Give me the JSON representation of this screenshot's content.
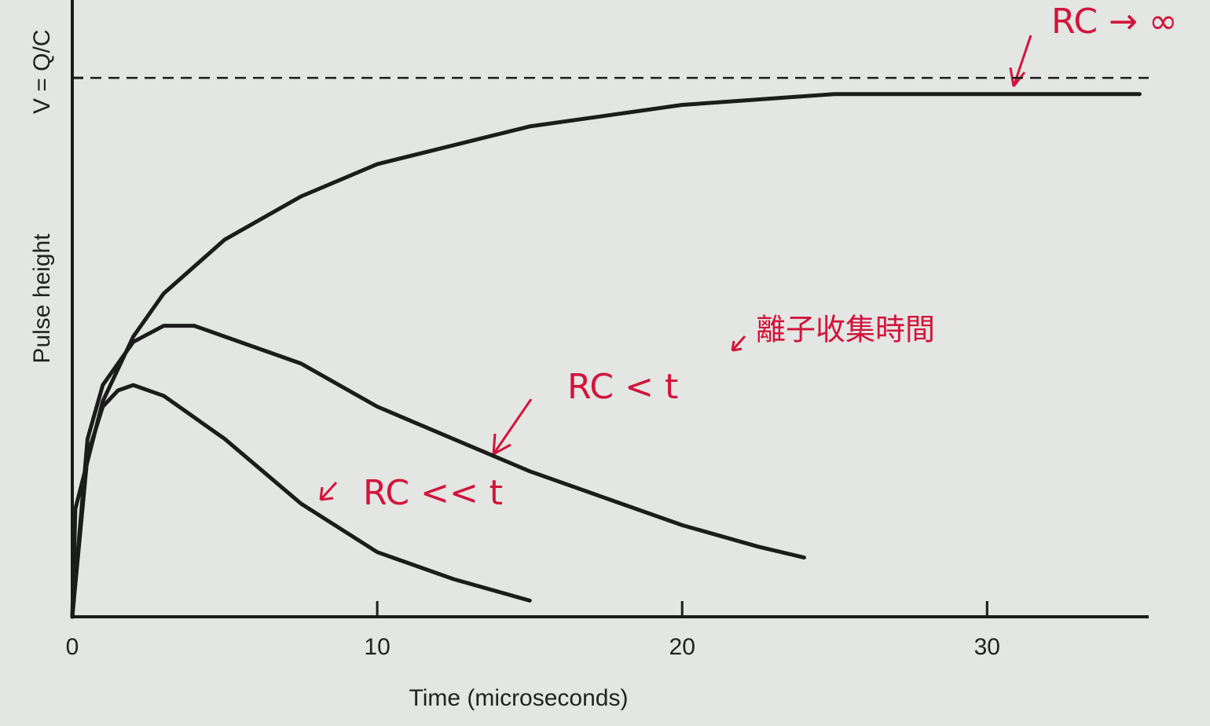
{
  "chart_data": {
    "type": "line",
    "x_label": "Time (microseconds)",
    "y_label": "Pulse height",
    "xlim": [
      0,
      35.3
    ],
    "ylim": [
      0,
      1.13
    ],
    "xticks": [
      0,
      10,
      20,
      30
    ],
    "reference_line": {
      "value": 1,
      "label": "V = Q/C"
    },
    "series": [
      {
        "name": "RC → ∞",
        "color": "#1c1c1c",
        "x": [
          0,
          0.1,
          1,
          2,
          3,
          5,
          7.5,
          10,
          15,
          20,
          25,
          30,
          35
        ],
        "values": [
          0,
          0.2,
          0.4,
          0.52,
          0.6,
          0.7,
          0.78,
          0.84,
          0.91,
          0.95,
          0.97,
          0.97,
          0.97
        ]
      },
      {
        "name": "RC < t",
        "color": "#1c1c1c",
        "x": [
          0,
          0.5,
          1,
          2,
          3,
          4,
          5,
          7.5,
          10,
          12.5,
          15,
          17.5,
          20,
          22.5,
          24
        ],
        "values": [
          0,
          0.33,
          0.43,
          0.51,
          0.54,
          0.54,
          0.52,
          0.47,
          0.39,
          0.33,
          0.27,
          0.22,
          0.17,
          0.13,
          0.11
        ]
      },
      {
        "name": "RC << t",
        "color": "#1c1c1c",
        "x": [
          0,
          0.5,
          1,
          1.5,
          2,
          3,
          5,
          7.5,
          10,
          12.5,
          15
        ],
        "values": [
          0,
          0.3,
          0.39,
          0.42,
          0.43,
          0.41,
          0.33,
          0.21,
          0.12,
          0.07,
          0.03
        ]
      }
    ],
    "annotations": [
      "離子收集時間"
    ]
  }
}
